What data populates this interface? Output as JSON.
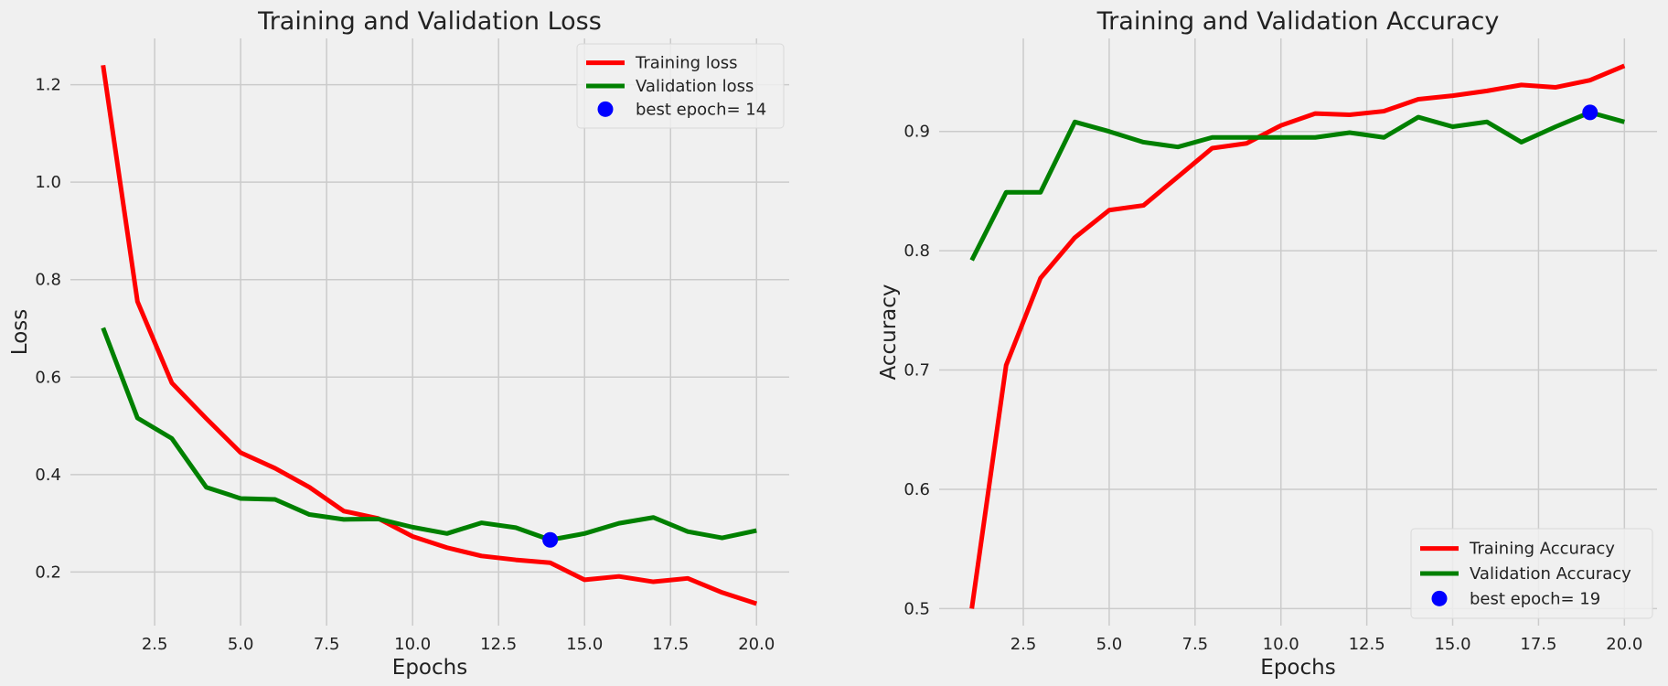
{
  "colors": {
    "background": "#f0f0f0",
    "grid": "#cbcbcb",
    "training": "#ff0000",
    "validation": "#008000",
    "best_marker": "#0000ff"
  },
  "chart_data": [
    {
      "type": "line",
      "title": "Training and Validation Loss",
      "xlabel": "Epochs",
      "ylabel": "Loss",
      "xlim": [
        0.05,
        20.95
      ],
      "ylim": [
        0.09,
        1.295
      ],
      "xticks": [
        2.5,
        5.0,
        7.5,
        10.0,
        12.5,
        15.0,
        17.5,
        20.0
      ],
      "xtick_labels": [
        "2.5",
        "5.0",
        "7.5",
        "10.0",
        "12.5",
        "15.0",
        "17.5",
        "20.0"
      ],
      "yticks": [
        0.2,
        0.4,
        0.6,
        0.8,
        1.0,
        1.2
      ],
      "ytick_labels": [
        "0.2",
        "0.4",
        "0.6",
        "0.8",
        "1.0",
        "1.2"
      ],
      "grid": true,
      "legend_position": "top-right",
      "x": [
        1,
        2,
        3,
        4,
        5,
        6,
        7,
        8,
        9,
        10,
        11,
        12,
        13,
        14,
        15,
        16,
        17,
        18,
        19,
        20
      ],
      "series": [
        {
          "name": "Training loss",
          "color": "#ff0000",
          "values": [
            1.24,
            0.755,
            0.588,
            0.515,
            0.445,
            0.413,
            0.374,
            0.325,
            0.31,
            0.273,
            0.25,
            0.233,
            0.225,
            0.219,
            0.184,
            0.191,
            0.18,
            0.187,
            0.158,
            0.135
          ]
        },
        {
          "name": "Validation loss",
          "color": "#008000",
          "values": [
            0.701,
            0.516,
            0.474,
            0.374,
            0.351,
            0.349,
            0.318,
            0.308,
            0.309,
            0.292,
            0.279,
            0.301,
            0.291,
            0.266,
            0.279,
            0.3,
            0.312,
            0.283,
            0.27,
            0.285
          ]
        }
      ],
      "best_point": {
        "name": "best epoch= 14",
        "x": 14,
        "y": 0.266,
        "color": "#0000ff"
      }
    },
    {
      "type": "line",
      "title": "Training and Validation Accuracy",
      "xlabel": "Epochs",
      "ylabel": "Accuracy",
      "xlim": [
        0.05,
        20.95
      ],
      "ylim": [
        0.4857,
        0.978
      ],
      "xticks": [
        2.5,
        5.0,
        7.5,
        10.0,
        12.5,
        15.0,
        17.5,
        20.0
      ],
      "xtick_labels": [
        "2.5",
        "5.0",
        "7.5",
        "10.0",
        "12.5",
        "15.0",
        "17.5",
        "20.0"
      ],
      "yticks": [
        0.5,
        0.6,
        0.7,
        0.8,
        0.9
      ],
      "ytick_labels": [
        "0.5",
        "0.6",
        "0.7",
        "0.8",
        "0.9"
      ],
      "grid": true,
      "legend_position": "bottom-right",
      "x": [
        1,
        2,
        3,
        4,
        5,
        6,
        7,
        8,
        9,
        10,
        11,
        12,
        13,
        14,
        15,
        16,
        17,
        18,
        19,
        20
      ],
      "series": [
        {
          "name": "Training Accuracy",
          "color": "#ff0000",
          "values": [
            0.5,
            0.704,
            0.777,
            0.811,
            0.834,
            0.838,
            0.862,
            0.886,
            0.89,
            0.905,
            0.915,
            0.914,
            0.917,
            0.927,
            0.93,
            0.934,
            0.939,
            0.937,
            0.943,
            0.955
          ]
        },
        {
          "name": "Validation Accuracy",
          "color": "#008000",
          "values": [
            0.792,
            0.849,
            0.849,
            0.908,
            0.9,
            0.891,
            0.887,
            0.895,
            0.895,
            0.895,
            0.895,
            0.899,
            0.895,
            0.912,
            0.904,
            0.908,
            0.891,
            0.904,
            0.916,
            0.908
          ]
        }
      ],
      "best_point": {
        "name": "best epoch= 19",
        "x": 19,
        "y": 0.916,
        "color": "#0000ff"
      }
    }
  ]
}
